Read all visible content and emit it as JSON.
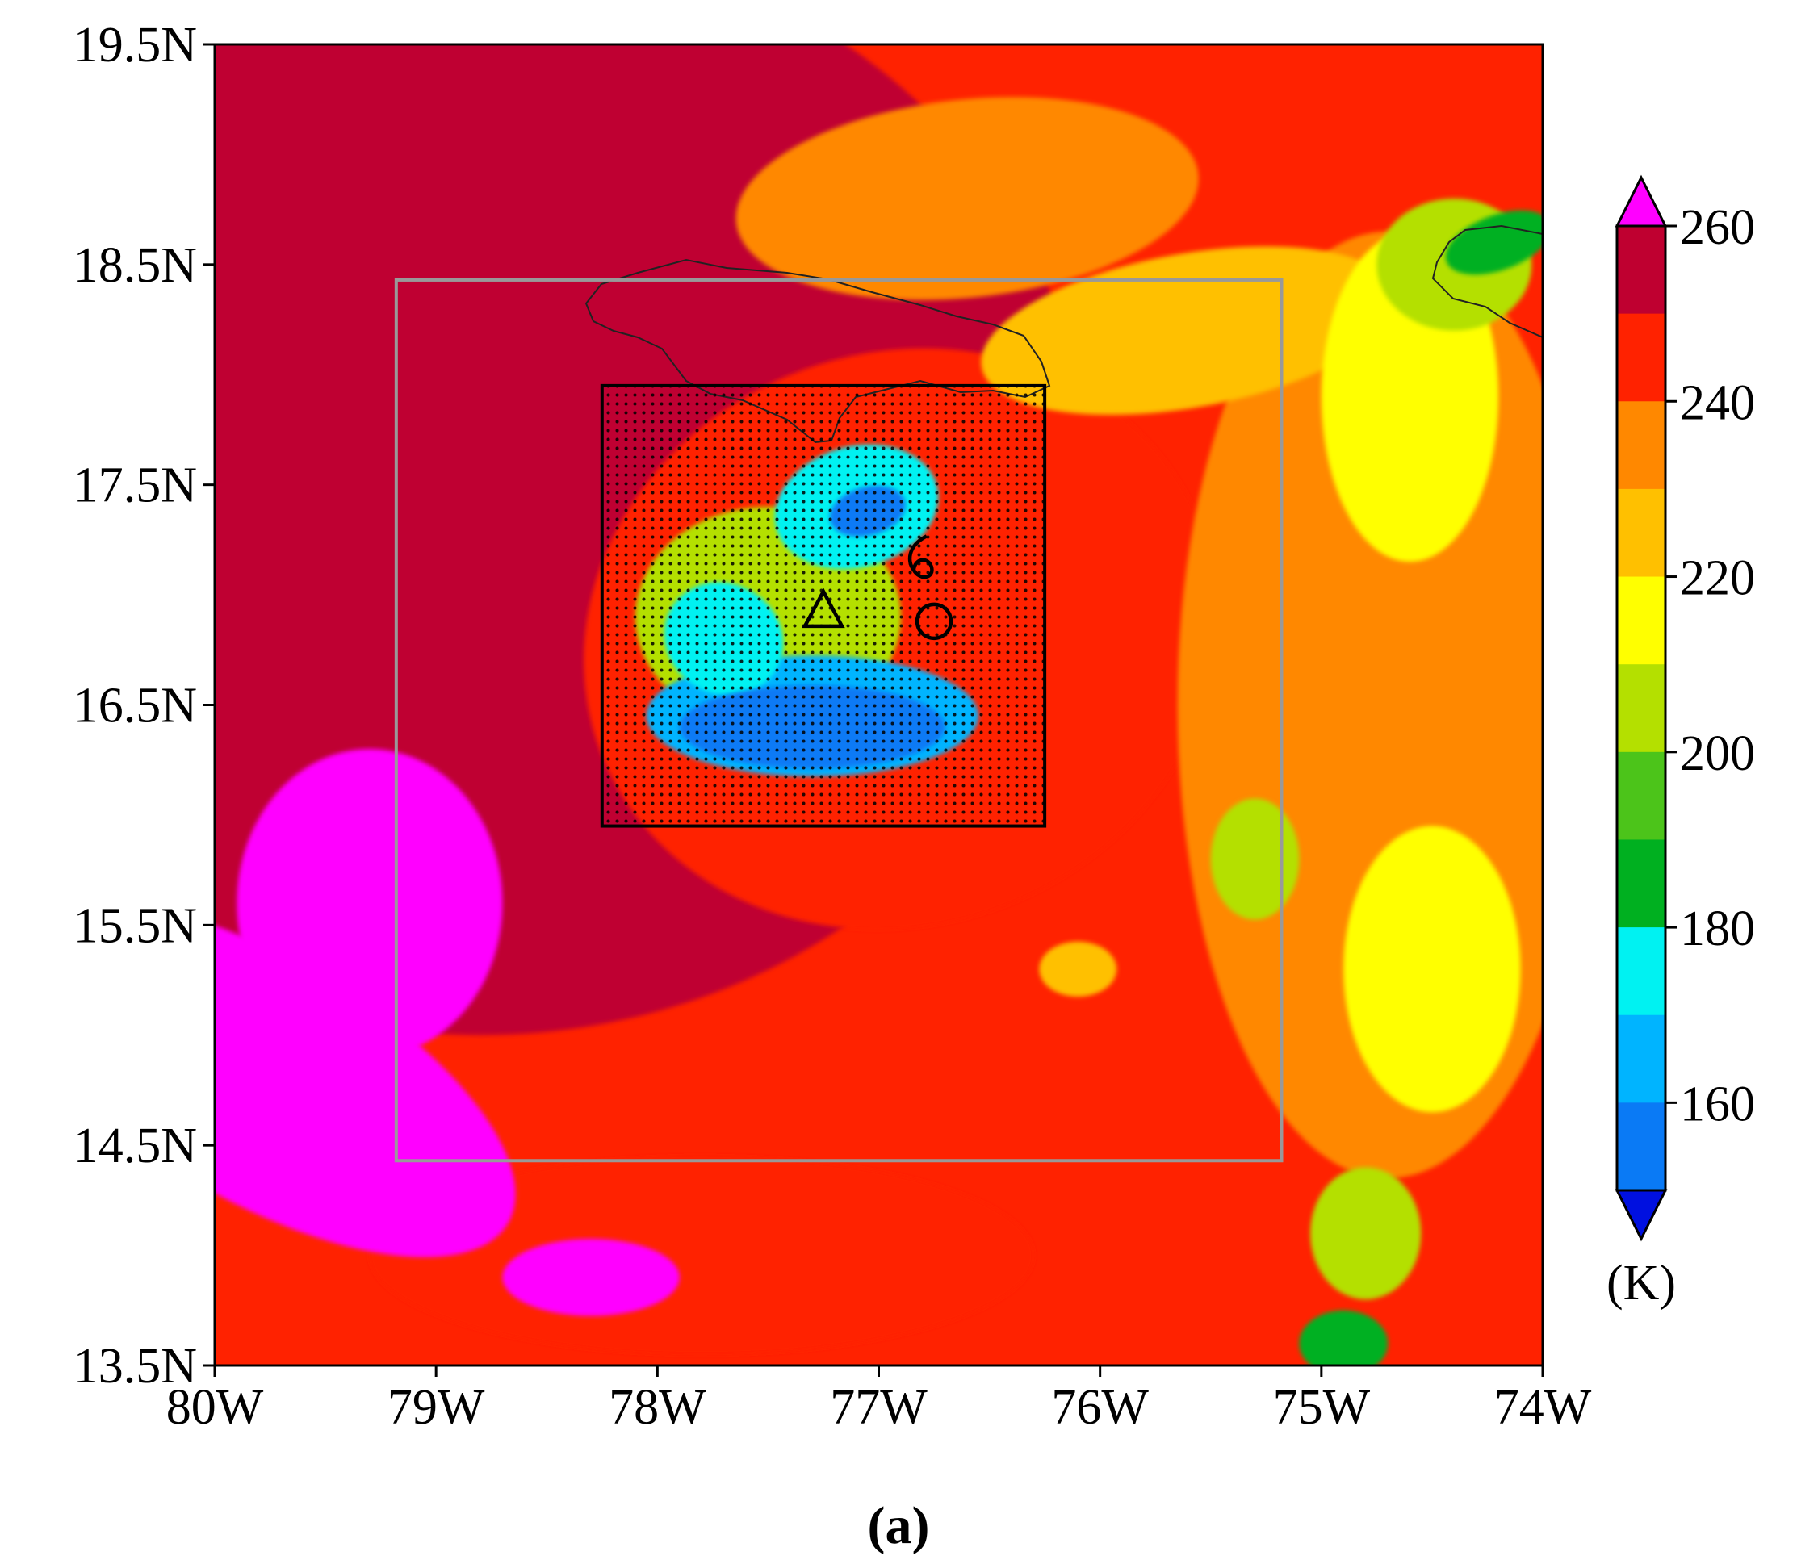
{
  "chart_data": {
    "type": "heatmap",
    "units_label": "(K)",
    "panel_label": "(a)",
    "x_axis": {
      "ticks": [
        {
          "value": -80,
          "label": "80W"
        },
        {
          "value": -79,
          "label": "79W"
        },
        {
          "value": -78,
          "label": "78W"
        },
        {
          "value": -77,
          "label": "77W"
        },
        {
          "value": -76,
          "label": "76W"
        },
        {
          "value": -75,
          "label": "75W"
        },
        {
          "value": -74,
          "label": "74W"
        }
      ],
      "range": [
        -80,
        -74
      ]
    },
    "y_axis": {
      "ticks": [
        {
          "value": 13.5,
          "label": "13.5N"
        },
        {
          "value": 14.5,
          "label": "14.5N"
        },
        {
          "value": 15.5,
          "label": "15.5N"
        },
        {
          "value": 16.5,
          "label": "16.5N"
        },
        {
          "value": 17.5,
          "label": "17.5N"
        },
        {
          "value": 18.5,
          "label": "18.5N"
        },
        {
          "value": 19.5,
          "label": "19.5N"
        }
      ],
      "range": [
        13.5,
        19.5
      ]
    },
    "colorbar": {
      "levels": [
        160,
        170,
        180,
        190,
        200,
        210,
        220,
        230,
        240,
        250,
        260
      ],
      "colors": [
        "#0010e0",
        "#0a7af5",
        "#00b4ff",
        "#00f2f2",
        "#00b020",
        "#4cc41a",
        "#b4e000",
        "#ffff00",
        "#ffc000",
        "#ff8800",
        "#ff2200",
        "#bf0030",
        "#ff00ff"
      ],
      "labels": [
        {
          "value": 160,
          "label": "160"
        },
        {
          "value": 180,
          "label": "180"
        },
        {
          "value": 200,
          "label": "200"
        },
        {
          "value": 220,
          "label": "220"
        },
        {
          "value": 240,
          "label": "240"
        },
        {
          "value": 260,
          "label": "260"
        }
      ],
      "extends": "both"
    },
    "boxes": [
      {
        "name": "outer",
        "lon": [
          -79.18,
          -75.18
        ],
        "lat": [
          14.43,
          18.43
        ],
        "color": "#999999"
      },
      {
        "name": "inner",
        "lon": [
          -78.25,
          -76.25
        ],
        "lat": [
          15.95,
          17.95
        ],
        "color": "#000000"
      }
    ],
    "markers": [
      {
        "type": "triangle",
        "lon": -77.25,
        "lat": 16.92
      },
      {
        "type": "circle",
        "lon": -76.75,
        "lat": 16.88
      },
      {
        "type": "tropical-cyclone",
        "lon": -76.82,
        "lat": 17.12
      }
    ],
    "field_blobs": [
      {
        "lon": -78.8,
        "lat": 17.5,
        "rx": 5.5,
        "ry": 5.0,
        "rot": 0,
        "value": 262
      },
      {
        "lon": -76.9,
        "lat": 16.8,
        "rx": 2.9,
        "ry": 2.6,
        "rot": -20,
        "value": 250
      },
      {
        "lon": -74.7,
        "lat": 16.5,
        "rx": 1.9,
        "ry": 4.3,
        "rot": 0,
        "value": 244
      },
      {
        "lon": -77.8,
        "lat": 14.0,
        "rx": 3.0,
        "ry": 0.9,
        "rot": 0,
        "value": 252
      },
      {
        "lon": -76.6,
        "lat": 18.8,
        "rx": 2.1,
        "ry": 0.9,
        "rot": -6,
        "value": 240
      },
      {
        "lon": -75.6,
        "lat": 18.2,
        "rx": 1.9,
        "ry": 0.7,
        "rot": -10,
        "value": 232
      },
      {
        "lon": -74.6,
        "lat": 17.9,
        "rx": 0.8,
        "ry": 1.5,
        "rot": 0,
        "value": 220
      },
      {
        "lon": -74.4,
        "lat": 18.5,
        "rx": 0.7,
        "ry": 0.6,
        "rot": 0,
        "value": 210
      },
      {
        "lon": -74.5,
        "lat": 15.3,
        "rx": 0.8,
        "ry": 1.3,
        "rot": 0,
        "value": 228
      },
      {
        "lon": -75.3,
        "lat": 15.8,
        "rx": 0.4,
        "ry": 0.55,
        "rot": 0,
        "value": 210
      },
      {
        "lon": -76.1,
        "lat": 15.3,
        "rx": 0.35,
        "ry": 0.25,
        "rot": 0,
        "value": 230
      },
      {
        "lon": -74.8,
        "lat": 14.1,
        "rx": 0.5,
        "ry": 0.6,
        "rot": 0,
        "value": 214
      },
      {
        "lon": -77.5,
        "lat": 16.9,
        "rx": 1.2,
        "ry": 1.0,
        "rot": 0,
        "value": 214
      },
      {
        "lon": -77.1,
        "lat": 17.4,
        "rx": 0.75,
        "ry": 0.55,
        "rot": -15,
        "value": 182
      },
      {
        "lon": -77.3,
        "lat": 16.45,
        "rx": 1.5,
        "ry": 0.55,
        "rot": 0,
        "value": 178
      },
      {
        "lon": -77.7,
        "lat": 16.8,
        "rx": 0.55,
        "ry": 0.5,
        "rot": 30,
        "value": 180
      },
      {
        "lon": -77.3,
        "lat": 16.4,
        "rx": 1.2,
        "ry": 0.38,
        "rot": 0,
        "value": 160
      },
      {
        "lon": -77.05,
        "lat": 17.38,
        "rx": 0.35,
        "ry": 0.22,
        "rot": -15,
        "value": 160
      },
      {
        "lon": -74.2,
        "lat": 18.6,
        "rx": 0.5,
        "ry": 0.25,
        "rot": -20,
        "value": 190
      },
      {
        "lon": -74.9,
        "lat": 13.6,
        "rx": 0.4,
        "ry": 0.3,
        "rot": 0,
        "value": 190
      },
      {
        "lon": -79.8,
        "lat": 14.8,
        "rx": 2.6,
        "ry": 1.1,
        "rot": 30,
        "value": 275
      },
      {
        "lon": -79.3,
        "lat": 15.6,
        "rx": 1.2,
        "ry": 1.4,
        "rot": 0,
        "value": 275
      },
      {
        "lon": -78.3,
        "lat": 13.9,
        "rx": 0.8,
        "ry": 0.35,
        "rot": 0,
        "value": 275
      }
    ]
  }
}
